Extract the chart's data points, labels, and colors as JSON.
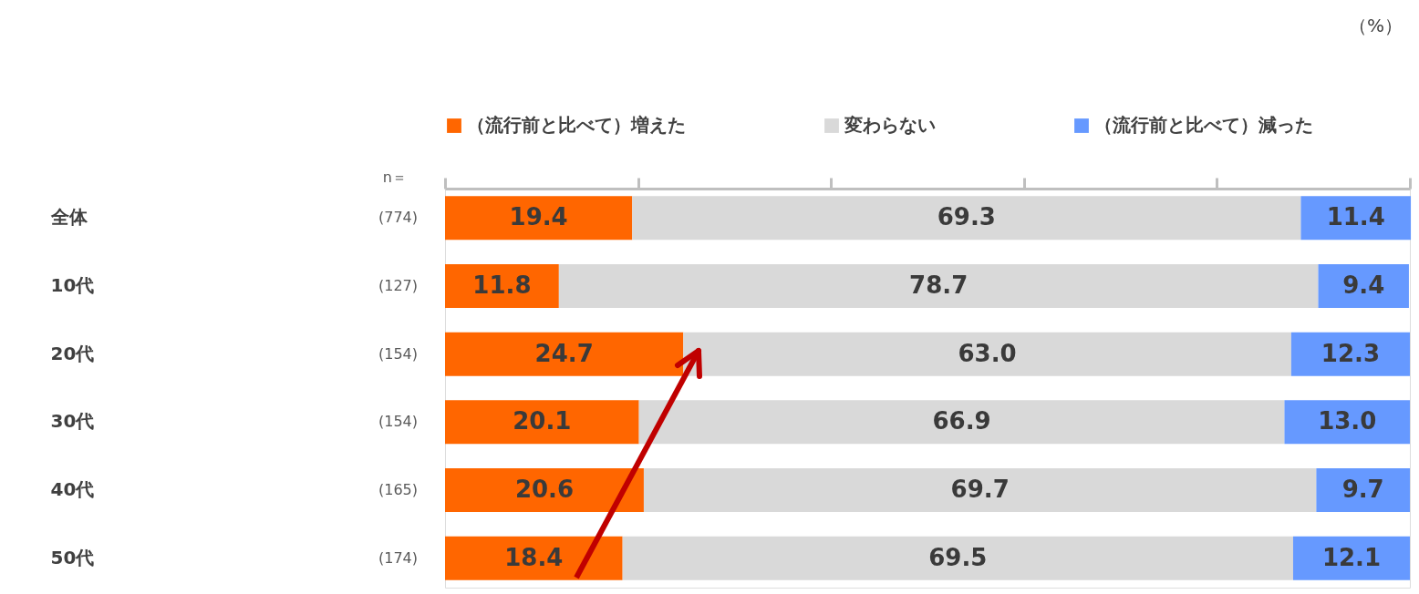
{
  "chart_data": {
    "type": "bar",
    "orientation": "horizontal",
    "stacked": true,
    "categories": [
      "全体",
      "10代",
      "20代",
      "30代",
      "40代",
      "50代"
    ],
    "series": [
      {
        "name": "（流行前と比べて）増えた",
        "color": "#ff6600",
        "values": [
          19.4,
          11.8,
          24.7,
          20.1,
          20.6,
          18.4
        ],
        "value_labels": [
          "19.4",
          "11.8",
          "24.7",
          "20.1",
          "20.6",
          "18.4"
        ]
      },
      {
        "name": "変わらない",
        "color": "#d9d9d9",
        "values": [
          69.3,
          78.7,
          63.0,
          66.9,
          69.7,
          69.5
        ],
        "value_labels": [
          "69.3",
          "78.7",
          "63.0",
          "66.9",
          "69.7",
          "69.5"
        ]
      },
      {
        "name": "（流行前と比べて）減った",
        "color": "#6699ff",
        "values": [
          11.4,
          9.4,
          12.3,
          13.0,
          9.7,
          12.1
        ],
        "value_labels": [
          "11.4",
          "9.4",
          "12.3",
          "13.0",
          "9.7",
          "12.1"
        ]
      }
    ],
    "xlim": [
      0,
      100
    ],
    "xticks": [
      {
        "value": 0,
        "label": null
      },
      {
        "value": 20,
        "label": null
      },
      {
        "value": 40,
        "label": null
      },
      {
        "value": 60,
        "label": null
      },
      {
        "value": 80,
        "label": null
      },
      {
        "value": 100,
        "label": null
      }
    ],
    "legend": "top",
    "grid": false,
    "tick_labels": "y",
    "annotations": [
      "（%）",
      "n＝",
      "(774)",
      "(127)",
      "(154)",
      "(154)",
      "(165)",
      "(174)"
    ]
  }
}
